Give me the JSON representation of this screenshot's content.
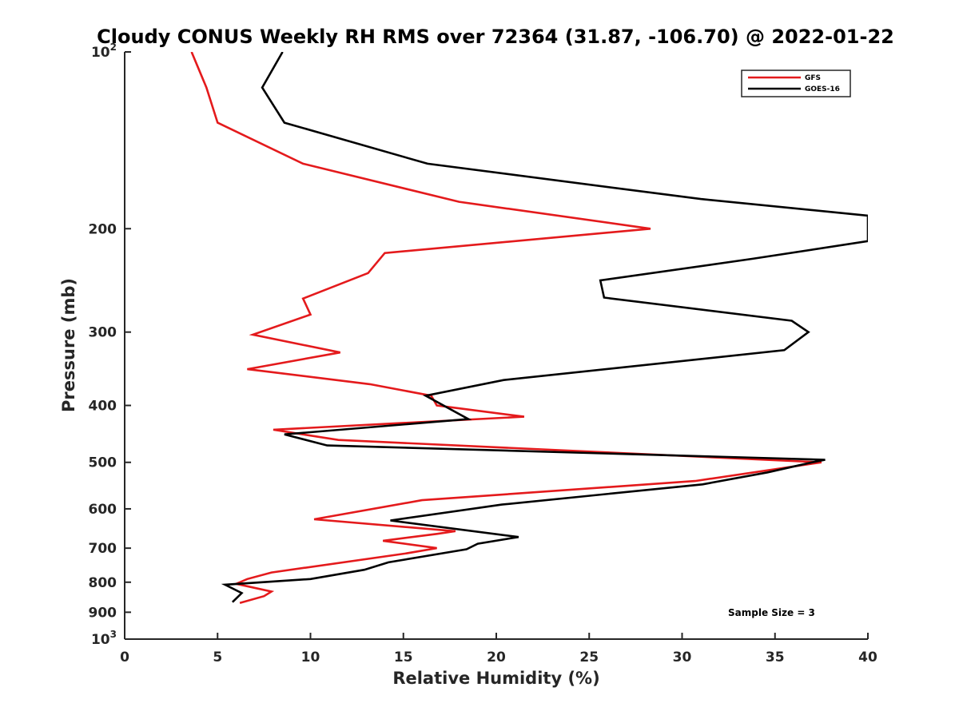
{
  "chart_data": {
    "type": "line",
    "title": "Cloudy CONUS Weekly RH RMS over 72364 (31.87, -106.70) @ 2022-01-22",
    "xlabel": "Relative Humidity (%)",
    "ylabel": "Pressure (mb)",
    "xlim": [
      0,
      40
    ],
    "ylim": [
      100,
      1000
    ],
    "y_scale": "log",
    "y_reversed": true,
    "x_ticks": [
      "0",
      "5",
      "10",
      "15",
      "20",
      "25",
      "30",
      "35",
      "40"
    ],
    "y_ticks": [
      {
        "value": 100,
        "base": "10",
        "exp": "2"
      },
      {
        "value": 200,
        "base": "200",
        "exp": ""
      },
      {
        "value": 300,
        "base": "300",
        "exp": ""
      },
      {
        "value": 400,
        "base": "400",
        "exp": ""
      },
      {
        "value": 500,
        "base": "500",
        "exp": ""
      },
      {
        "value": 600,
        "base": "600",
        "exp": ""
      },
      {
        "value": 700,
        "base": "700",
        "exp": ""
      },
      {
        "value": 800,
        "base": "800",
        "exp": ""
      },
      {
        "value": 900,
        "base": "900",
        "exp": ""
      },
      {
        "value": 1000,
        "base": "10",
        "exp": "3"
      }
    ],
    "grid": false,
    "legend_position": "top-right",
    "annotation": "Sample Size = 3",
    "series": [
      {
        "name": "GFS",
        "color": "#e41a1c",
        "points": [
          [
            3.6,
            100
          ],
          [
            4.4,
            115
          ],
          [
            5.0,
            132
          ],
          [
            9.6,
            155
          ],
          [
            18.0,
            180
          ],
          [
            28.3,
            200
          ],
          [
            14.0,
            220
          ],
          [
            13.1,
            238
          ],
          [
            9.6,
            263
          ],
          [
            10.0,
            280
          ],
          [
            6.9,
            303
          ],
          [
            11.6,
            325
          ],
          [
            6.6,
            347
          ],
          [
            13.2,
            368
          ],
          [
            16.5,
            385
          ],
          [
            16.8,
            400
          ],
          [
            21.5,
            418
          ],
          [
            8.0,
            440
          ],
          [
            11.5,
            458
          ],
          [
            37.5,
            500
          ],
          [
            30.7,
            538
          ],
          [
            16.0,
            580
          ],
          [
            10.2,
            625
          ],
          [
            17.8,
            655
          ],
          [
            16.8,
            662
          ],
          [
            13.9,
            680
          ],
          [
            16.8,
            700
          ],
          [
            15.1,
            715
          ],
          [
            7.9,
            770
          ],
          [
            6.6,
            790
          ],
          [
            6.0,
            805
          ],
          [
            7.9,
            830
          ],
          [
            7.5,
            845
          ],
          [
            6.2,
            868
          ]
        ]
      },
      {
        "name": "GOES-16",
        "color": "#000000",
        "points": [
          [
            8.5,
            100
          ],
          [
            7.4,
            115
          ],
          [
            8.6,
            132
          ],
          [
            16.3,
            155
          ],
          [
            31.0,
            178
          ],
          [
            40.0,
            190
          ],
          [
            40.0,
            210
          ],
          [
            33.8,
            225
          ],
          [
            25.6,
            245
          ],
          [
            25.8,
            262
          ],
          [
            35.9,
            287
          ],
          [
            36.8,
            300
          ],
          [
            35.5,
            322
          ],
          [
            20.4,
            362
          ],
          [
            16.2,
            385
          ],
          [
            18.5,
            422
          ],
          [
            8.6,
            448
          ],
          [
            10.9,
            468
          ],
          [
            37.7,
            495
          ],
          [
            37.0,
            500
          ],
          [
            34.6,
            520
          ],
          [
            31.1,
            545
          ],
          [
            20.3,
            590
          ],
          [
            14.3,
            628
          ],
          [
            21.2,
            670
          ],
          [
            19.0,
            688
          ],
          [
            18.4,
            703
          ],
          [
            14.2,
            740
          ],
          [
            12.9,
            762
          ],
          [
            10.0,
            790
          ],
          [
            5.4,
            808
          ],
          [
            6.3,
            835
          ],
          [
            5.8,
            865
          ]
        ]
      }
    ]
  }
}
